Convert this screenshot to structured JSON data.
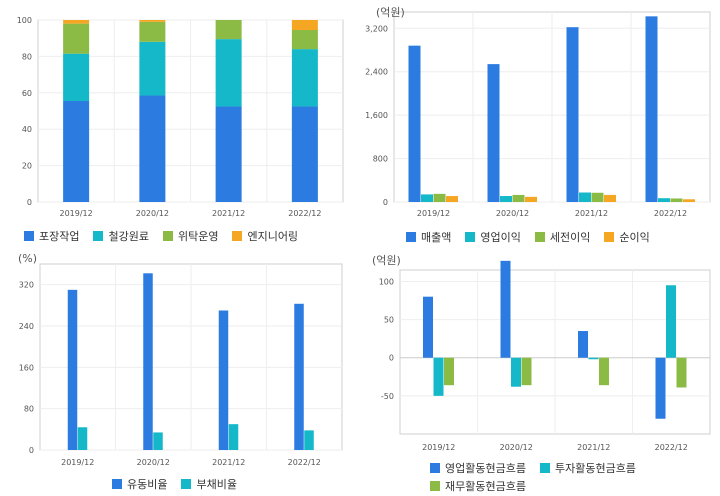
{
  "chart_data": [
    {
      "id": "c1",
      "type": "stacked-bar",
      "unit_label": "",
      "categories": [
        "2019/12",
        "2020/12",
        "2021/12",
        "2022/12"
      ],
      "ylim": [
        0,
        100
      ],
      "yticks": [
        0,
        20,
        40,
        60,
        80,
        100
      ],
      "series": [
        {
          "name": "포장작업",
          "color": "#2b7be0",
          "values": [
            55.5,
            58.5,
            52.5,
            52.5
          ]
        },
        {
          "name": "철강원료",
          "color": "#14b8c8",
          "values": [
            26.0,
            29.5,
            37.0,
            31.5
          ]
        },
        {
          "name": "위탁운영",
          "color": "#8bbb45",
          "values": [
            16.5,
            11.0,
            10.5,
            10.5
          ]
        },
        {
          "name": "엔지니어링",
          "color": "#f5a623",
          "values": [
            2.0,
            1.0,
            0.0,
            5.5
          ]
        }
      ]
    },
    {
      "id": "c2",
      "type": "bar",
      "unit_label": "(억원)",
      "categories": [
        "2019/12",
        "2020/12",
        "2021/12",
        "2022/12"
      ],
      "ylim": [
        0,
        3500
      ],
      "yticks": [
        0,
        800,
        1600,
        2400,
        3200
      ],
      "ytick_labels": [
        "0",
        "800",
        "1,600",
        "2,400",
        "3,200"
      ],
      "series": [
        {
          "name": "매출액",
          "color": "#2b7be0",
          "values": [
            2880,
            2540,
            3220,
            3420
          ]
        },
        {
          "name": "영업이익",
          "color": "#14b8c8",
          "values": [
            140,
            110,
            175,
            70
          ]
        },
        {
          "name": "세전이익",
          "color": "#8bbb45",
          "values": [
            150,
            130,
            170,
            65
          ]
        },
        {
          "name": "순이익",
          "color": "#f5a623",
          "values": [
            110,
            95,
            130,
            50
          ]
        }
      ]
    },
    {
      "id": "c3",
      "type": "bar",
      "unit_label": "(%)",
      "categories": [
        "2019/12",
        "2020/12",
        "2021/12",
        "2022/12"
      ],
      "ylim": [
        0,
        360
      ],
      "yticks": [
        0,
        80,
        160,
        240,
        320
      ],
      "series": [
        {
          "name": "유동비율",
          "color": "#2b7be0",
          "values": [
            310,
            342,
            270,
            283
          ]
        },
        {
          "name": "부채비율",
          "color": "#14b8c8",
          "values": [
            44,
            34,
            50,
            38
          ]
        }
      ]
    },
    {
      "id": "c4",
      "type": "bar",
      "unit_label": "(억원)",
      "categories": [
        "2019/12",
        "2020/12",
        "2021/12",
        "2022/12"
      ],
      "ylim": [
        -100,
        115
      ],
      "yticks": [
        -50,
        0,
        50,
        100
      ],
      "series": [
        {
          "name": "영업활동현금흐름",
          "color": "#2b7be0",
          "values": [
            80,
            127,
            35,
            -80
          ]
        },
        {
          "name": "투자활동현금흐름",
          "color": "#14b8c8",
          "values": [
            -50,
            -38,
            -2,
            95
          ]
        },
        {
          "name": "재무활동현금흐름",
          "color": "#8bbb45",
          "values": [
            -36,
            -36,
            -36,
            -39
          ]
        }
      ]
    }
  ]
}
